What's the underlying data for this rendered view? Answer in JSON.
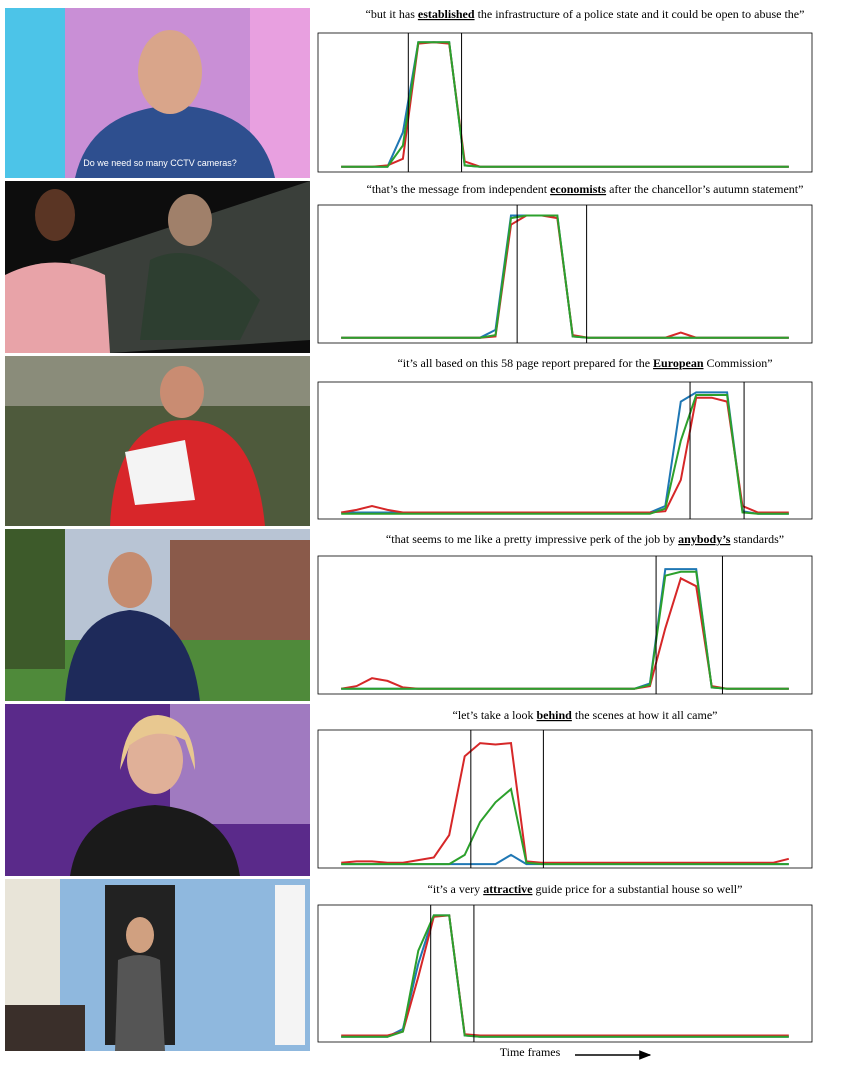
{
  "photo_text": "Do we need so many CCTV cameras?",
  "x_axis_label": "Time frames",
  "chart_data": [
    {
      "type": "line",
      "title": [
        "“but it has ",
        "established",
        " the infrastructure of a police state and it could be open to abuse the”"
      ],
      "xlim": [
        -1.5,
        30.5
      ],
      "ylim": [
        0,
        1.05
      ],
      "vlines": [
        4.35,
        7.8
      ],
      "x": [
        0,
        1,
        2,
        3,
        4,
        5,
        6,
        7,
        8,
        9,
        10,
        11,
        12,
        13,
        14,
        15,
        16,
        17,
        18,
        19,
        20,
        21,
        22,
        23,
        24,
        25,
        26,
        27,
        28,
        29
      ],
      "series": [
        {
          "color": "#1f77b4",
          "values": [
            0.04,
            0.04,
            0.04,
            0.04,
            0.3,
            0.98,
            0.98,
            0.98,
            0.05,
            0.04,
            0.04,
            0.04,
            0.04,
            0.04,
            0.04,
            0.04,
            0.04,
            0.04,
            0.04,
            0.04,
            0.04,
            0.04,
            0.04,
            0.04,
            0.04,
            0.04,
            0.04,
            0.04,
            0.04,
            0.04
          ]
        },
        {
          "color": "#d62728",
          "values": [
            0.04,
            0.04,
            0.04,
            0.05,
            0.1,
            0.97,
            0.98,
            0.97,
            0.08,
            0.04,
            0.04,
            0.04,
            0.04,
            0.04,
            0.04,
            0.04,
            0.04,
            0.04,
            0.04,
            0.04,
            0.04,
            0.04,
            0.04,
            0.04,
            0.04,
            0.04,
            0.04,
            0.04,
            0.04,
            0.04
          ]
        },
        {
          "color": "#2ca02c",
          "values": [
            0.04,
            0.04,
            0.04,
            0.04,
            0.2,
            0.98,
            0.98,
            0.98,
            0.05,
            0.04,
            0.04,
            0.04,
            0.04,
            0.04,
            0.04,
            0.04,
            0.04,
            0.04,
            0.04,
            0.04,
            0.04,
            0.04,
            0.04,
            0.04,
            0.04,
            0.04,
            0.04,
            0.04,
            0.04,
            0.04
          ]
        }
      ]
    },
    {
      "type": "line",
      "title": [
        "“that’s the message from independent ",
        "economists",
        " after the chancellor’s autumn statement”"
      ],
      "xlim": [
        -1.5,
        30.5
      ],
      "ylim": [
        0,
        1.05
      ],
      "vlines": [
        11.4,
        15.9
      ],
      "x": [
        0,
        1,
        2,
        3,
        4,
        5,
        6,
        7,
        8,
        9,
        10,
        11,
        12,
        13,
        14,
        15,
        16,
        17,
        18,
        19,
        20,
        21,
        22,
        23,
        24,
        25,
        26,
        27,
        28,
        29
      ],
      "series": [
        {
          "color": "#1f77b4",
          "values": [
            0.04,
            0.04,
            0.04,
            0.04,
            0.04,
            0.04,
            0.04,
            0.04,
            0.04,
            0.04,
            0.1,
            0.97,
            0.97,
            0.97,
            0.97,
            0.05,
            0.04,
            0.04,
            0.04,
            0.04,
            0.04,
            0.04,
            0.04,
            0.04,
            0.04,
            0.04,
            0.04,
            0.04,
            0.04,
            0.04
          ]
        },
        {
          "color": "#d62728",
          "values": [
            0.04,
            0.04,
            0.04,
            0.04,
            0.04,
            0.04,
            0.04,
            0.04,
            0.04,
            0.04,
            0.05,
            0.9,
            0.97,
            0.97,
            0.95,
            0.06,
            0.04,
            0.04,
            0.04,
            0.04,
            0.04,
            0.04,
            0.08,
            0.04,
            0.04,
            0.04,
            0.04,
            0.04,
            0.04,
            0.04
          ]
        },
        {
          "color": "#2ca02c",
          "values": [
            0.04,
            0.04,
            0.04,
            0.04,
            0.04,
            0.04,
            0.04,
            0.04,
            0.04,
            0.04,
            0.06,
            0.95,
            0.97,
            0.97,
            0.97,
            0.05,
            0.04,
            0.04,
            0.04,
            0.04,
            0.04,
            0.04,
            0.04,
            0.04,
            0.04,
            0.04,
            0.04,
            0.04,
            0.04,
            0.04
          ]
        }
      ]
    },
    {
      "type": "line",
      "title": [
        "“it’s all based on this 58 page report prepared for the ",
        "European",
        " Commission”"
      ],
      "xlim": [
        -1.5,
        30.5
      ],
      "ylim": [
        0,
        1.05
      ],
      "vlines": [
        22.6,
        26.1
      ],
      "x": [
        0,
        1,
        2,
        3,
        4,
        5,
        6,
        7,
        8,
        9,
        10,
        11,
        12,
        13,
        14,
        15,
        16,
        17,
        18,
        19,
        20,
        21,
        22,
        23,
        24,
        25,
        26,
        27,
        28,
        29
      ],
      "series": [
        {
          "color": "#1f77b4",
          "values": [
            0.05,
            0.05,
            0.05,
            0.05,
            0.05,
            0.05,
            0.05,
            0.05,
            0.05,
            0.05,
            0.05,
            0.05,
            0.05,
            0.05,
            0.05,
            0.05,
            0.05,
            0.05,
            0.05,
            0.05,
            0.05,
            0.1,
            0.9,
            0.97,
            0.97,
            0.97,
            0.06,
            0.04,
            0.04,
            0.04
          ]
        },
        {
          "color": "#d62728",
          "values": [
            0.05,
            0.07,
            0.1,
            0.07,
            0.05,
            0.05,
            0.05,
            0.05,
            0.05,
            0.05,
            0.05,
            0.05,
            0.05,
            0.05,
            0.05,
            0.05,
            0.05,
            0.05,
            0.05,
            0.05,
            0.05,
            0.06,
            0.3,
            0.93,
            0.93,
            0.9,
            0.1,
            0.05,
            0.05,
            0.05
          ]
        },
        {
          "color": "#2ca02c",
          "values": [
            0.04,
            0.04,
            0.04,
            0.04,
            0.04,
            0.04,
            0.04,
            0.04,
            0.04,
            0.04,
            0.04,
            0.04,
            0.04,
            0.04,
            0.04,
            0.04,
            0.04,
            0.04,
            0.04,
            0.04,
            0.04,
            0.08,
            0.6,
            0.95,
            0.95,
            0.95,
            0.05,
            0.04,
            0.04,
            0.04
          ]
        }
      ]
    },
    {
      "type": "line",
      "title": [
        "“that seems to me like a pretty impressive perk of the job by ",
        "anybody’s",
        " standards”"
      ],
      "xlim": [
        -1.5,
        30.5
      ],
      "ylim": [
        0,
        1.05
      ],
      "vlines": [
        20.4,
        24.7
      ],
      "x": [
        0,
        1,
        2,
        3,
        4,
        5,
        6,
        7,
        8,
        9,
        10,
        11,
        12,
        13,
        14,
        15,
        16,
        17,
        18,
        19,
        20,
        21,
        22,
        23,
        24,
        25,
        26,
        27,
        28,
        29
      ],
      "series": [
        {
          "color": "#1f77b4",
          "values": [
            0.04,
            0.04,
            0.04,
            0.04,
            0.04,
            0.04,
            0.04,
            0.04,
            0.04,
            0.04,
            0.04,
            0.04,
            0.04,
            0.04,
            0.04,
            0.04,
            0.04,
            0.04,
            0.04,
            0.04,
            0.08,
            0.95,
            0.95,
            0.95,
            0.05,
            0.04,
            0.04,
            0.04,
            0.04,
            0.04
          ]
        },
        {
          "color": "#d62728",
          "values": [
            0.04,
            0.06,
            0.12,
            0.1,
            0.05,
            0.04,
            0.04,
            0.04,
            0.04,
            0.04,
            0.04,
            0.04,
            0.04,
            0.04,
            0.04,
            0.04,
            0.04,
            0.04,
            0.04,
            0.04,
            0.06,
            0.5,
            0.88,
            0.82,
            0.06,
            0.04,
            0.04,
            0.04,
            0.04,
            0.04
          ]
        },
        {
          "color": "#2ca02c",
          "values": [
            0.04,
            0.04,
            0.04,
            0.04,
            0.04,
            0.04,
            0.04,
            0.04,
            0.04,
            0.04,
            0.04,
            0.04,
            0.04,
            0.04,
            0.04,
            0.04,
            0.04,
            0.04,
            0.04,
            0.04,
            0.07,
            0.9,
            0.93,
            0.93,
            0.05,
            0.04,
            0.04,
            0.04,
            0.04,
            0.04
          ]
        }
      ]
    },
    {
      "type": "line",
      "title": [
        "“let’s take a look ",
        "behind",
        " the scenes at how it all came”"
      ],
      "xlim": [
        -1.5,
        30.5
      ],
      "ylim": [
        0,
        1.05
      ],
      "vlines": [
        8.4,
        13.1
      ],
      "x": [
        0,
        1,
        2,
        3,
        4,
        5,
        6,
        7,
        8,
        9,
        10,
        11,
        12,
        13,
        14,
        15,
        16,
        17,
        18,
        19,
        20,
        21,
        22,
        23,
        24,
        25,
        26,
        27,
        28,
        29
      ],
      "series": [
        {
          "color": "#1f77b4",
          "values": [
            0.03,
            0.03,
            0.03,
            0.03,
            0.03,
            0.03,
            0.03,
            0.03,
            0.03,
            0.03,
            0.03,
            0.1,
            0.03,
            0.03,
            0.03,
            0.03,
            0.03,
            0.03,
            0.03,
            0.03,
            0.03,
            0.03,
            0.03,
            0.03,
            0.03,
            0.03,
            0.03,
            0.03,
            0.03,
            0.03
          ]
        },
        {
          "color": "#d62728",
          "values": [
            0.04,
            0.05,
            0.05,
            0.04,
            0.04,
            0.06,
            0.08,
            0.25,
            0.85,
            0.95,
            0.94,
            0.95,
            0.05,
            0.04,
            0.04,
            0.04,
            0.04,
            0.04,
            0.04,
            0.04,
            0.04,
            0.04,
            0.04,
            0.04,
            0.04,
            0.04,
            0.04,
            0.04,
            0.04,
            0.07
          ]
        },
        {
          "color": "#2ca02c",
          "values": [
            0.03,
            0.03,
            0.03,
            0.03,
            0.03,
            0.03,
            0.03,
            0.03,
            0.1,
            0.35,
            0.5,
            0.6,
            0.04,
            0.03,
            0.03,
            0.03,
            0.03,
            0.03,
            0.03,
            0.03,
            0.03,
            0.03,
            0.03,
            0.03,
            0.03,
            0.03,
            0.03,
            0.03,
            0.03,
            0.03
          ]
        }
      ]
    },
    {
      "type": "line",
      "title": [
        "“it’s a very ",
        "attractive",
        " guide price for a substantial house so well”"
      ],
      "xlim": [
        -1.5,
        30.5
      ],
      "ylim": [
        0,
        1.05
      ],
      "vlines": [
        5.8,
        8.6
      ],
      "x": [
        0,
        1,
        2,
        3,
        4,
        5,
        6,
        7,
        8,
        9,
        10,
        11,
        12,
        13,
        14,
        15,
        16,
        17,
        18,
        19,
        20,
        21,
        22,
        23,
        24,
        25,
        26,
        27,
        28,
        29
      ],
      "series": [
        {
          "color": "#1f77b4",
          "values": [
            0.04,
            0.04,
            0.04,
            0.04,
            0.1,
            0.6,
            0.97,
            0.97,
            0.05,
            0.04,
            0.04,
            0.04,
            0.04,
            0.04,
            0.04,
            0.04,
            0.04,
            0.04,
            0.04,
            0.04,
            0.04,
            0.04,
            0.04,
            0.04,
            0.04,
            0.04,
            0.04,
            0.04,
            0.04,
            0.04
          ]
        },
        {
          "color": "#d62728",
          "values": [
            0.05,
            0.05,
            0.05,
            0.05,
            0.08,
            0.5,
            0.96,
            0.97,
            0.06,
            0.05,
            0.05,
            0.05,
            0.05,
            0.05,
            0.05,
            0.05,
            0.05,
            0.05,
            0.05,
            0.05,
            0.05,
            0.05,
            0.05,
            0.05,
            0.05,
            0.05,
            0.05,
            0.05,
            0.05,
            0.05
          ]
        },
        {
          "color": "#2ca02c",
          "values": [
            0.04,
            0.04,
            0.04,
            0.04,
            0.08,
            0.7,
            0.97,
            0.97,
            0.05,
            0.04,
            0.04,
            0.04,
            0.04,
            0.04,
            0.04,
            0.04,
            0.04,
            0.04,
            0.04,
            0.04,
            0.04,
            0.04,
            0.04,
            0.04,
            0.04,
            0.04,
            0.04,
            0.04,
            0.04,
            0.04
          ]
        }
      ]
    }
  ]
}
